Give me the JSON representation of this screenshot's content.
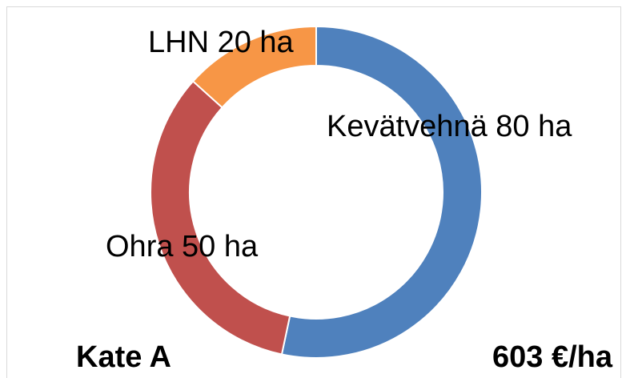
{
  "chart_data": {
    "type": "donut",
    "values": [
      80,
      50,
      20
    ],
    "value_labels": [
      "Kevätvehnä 80 ha",
      "Ohra 50 ha",
      "LHN 20 ha"
    ],
    "colors": [
      "#4f81bd",
      "#c0504d",
      "#f79646"
    ],
    "annotations": [
      "Kate A",
      "603 €/ha"
    ]
  }
}
